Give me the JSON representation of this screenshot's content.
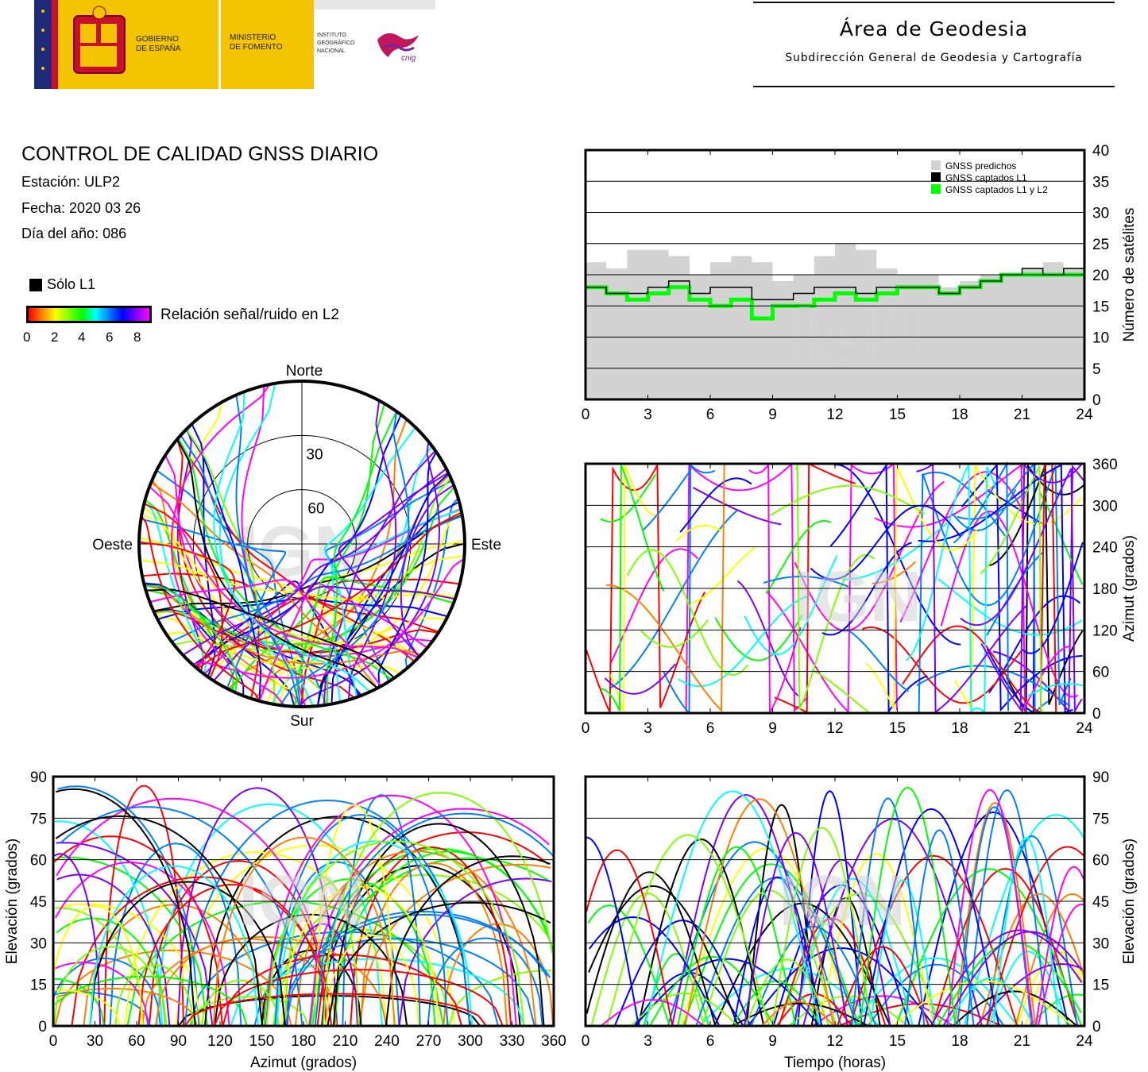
{
  "header": {
    "org_gov": "GOBIERNO\nDE ESPAÑA",
    "org_min": "MINISTERIO\nDE FOMENTO",
    "org_ign": "INSTITUTO\nGEOGRÁFICO\nNACIONAL",
    "cnig": "cnig",
    "area_title": "Área de Geodesia",
    "area_subtitle": "Subdirección General de Geodesia y Cartografía"
  },
  "info": {
    "title": "CONTROL DE CALIDAD GNSS DIARIO",
    "station": "Estación: ULP2",
    "date": "Fecha: 2020 03 26",
    "doy": "Día del año: 086"
  },
  "legend": {
    "l1_only": "Sólo L1",
    "snr_label": "Relación señal/ruido en L2",
    "snr_ticks": [
      "0",
      "2",
      "4",
      "6",
      "8"
    ],
    "snr_colors": [
      "#ff0000",
      "#ff7f00",
      "#ffff00",
      "#7fff00",
      "#00ff00",
      "#00ffff",
      "#007fff",
      "#0000ff",
      "#7f00ff",
      "#ff00ff"
    ]
  },
  "watermark": "IGN",
  "chart_data": [
    {
      "id": "satellites",
      "type": "area",
      "ylabel": "Número de satélites",
      "xlim": [
        0,
        24
      ],
      "ylim": [
        0,
        40
      ],
      "xticks": [
        "0",
        "3",
        "6",
        "9",
        "12",
        "15",
        "18",
        "21",
        "24"
      ],
      "yticks": [
        "0",
        "5",
        "10",
        "15",
        "20",
        "25",
        "30",
        "35",
        "40"
      ],
      "legend": [
        "GNSS predichos",
        "GNSS captados L1",
        "GNSS captados L1 y L2"
      ],
      "legend_position": "top-right",
      "colors": {
        "predicted": "#d3d3d3",
        "l1": "#000000",
        "l1l2": "#00ff00"
      },
      "x": [
        0,
        1,
        2,
        3,
        4,
        5,
        6,
        7,
        8,
        9,
        10,
        11,
        12,
        13,
        14,
        15,
        16,
        17,
        18,
        19,
        20,
        21,
        22,
        23,
        24
      ],
      "predicted": [
        22,
        21,
        24,
        24,
        23,
        20,
        22,
        23,
        22,
        19,
        20,
        23,
        25,
        24,
        21,
        20,
        20,
        18,
        19,
        20,
        20,
        21,
        22,
        21,
        20
      ],
      "l1": [
        18,
        17,
        17,
        18,
        19,
        17,
        18,
        18,
        16,
        16,
        17,
        18,
        18,
        17,
        18,
        18,
        18,
        17,
        18,
        19,
        20,
        21,
        20,
        21,
        18
      ],
      "l1l2": [
        18,
        17,
        16,
        17,
        18,
        16,
        15,
        16,
        13,
        15,
        15,
        16,
        17,
        16,
        17,
        18,
        18,
        17,
        18,
        19,
        20,
        20,
        20,
        20,
        17
      ]
    },
    {
      "id": "skyplot",
      "type": "scatter",
      "rings": [
        "30",
        "60"
      ],
      "directions": {
        "north": "Norte",
        "south": "Sur",
        "east": "Este",
        "west": "Oeste"
      }
    },
    {
      "id": "azimuth_time",
      "type": "scatter",
      "ylabel": "Azimut (grados)",
      "xlim": [
        0,
        24
      ],
      "ylim": [
        0,
        360
      ],
      "xticks": [
        "0",
        "3",
        "6",
        "9",
        "12",
        "15",
        "18",
        "21",
        "24"
      ],
      "yticks": [
        "0",
        "60",
        "120",
        "180",
        "240",
        "300",
        "360"
      ]
    },
    {
      "id": "elevation_azimuth",
      "type": "scatter",
      "xlabel": "Azimut (grados)",
      "ylabel": "Elevación (grados)",
      "xlim": [
        0,
        360
      ],
      "ylim": [
        0,
        90
      ],
      "xticks": [
        "0",
        "30",
        "60",
        "90",
        "120",
        "150",
        "180",
        "210",
        "240",
        "270",
        "300",
        "330",
        "360"
      ],
      "yticks": [
        "0",
        "15",
        "30",
        "45",
        "60",
        "75",
        "90"
      ]
    },
    {
      "id": "elevation_time",
      "type": "scatter",
      "xlabel": "Tiempo (horas)",
      "ylabel": "Elevación (grados)",
      "xlim": [
        0,
        24
      ],
      "ylim": [
        0,
        90
      ],
      "xticks": [
        "0",
        "3",
        "6",
        "9",
        "12",
        "15",
        "18",
        "21",
        "24"
      ],
      "yticks": [
        "0",
        "15",
        "30",
        "45",
        "60",
        "75",
        "90"
      ]
    }
  ]
}
